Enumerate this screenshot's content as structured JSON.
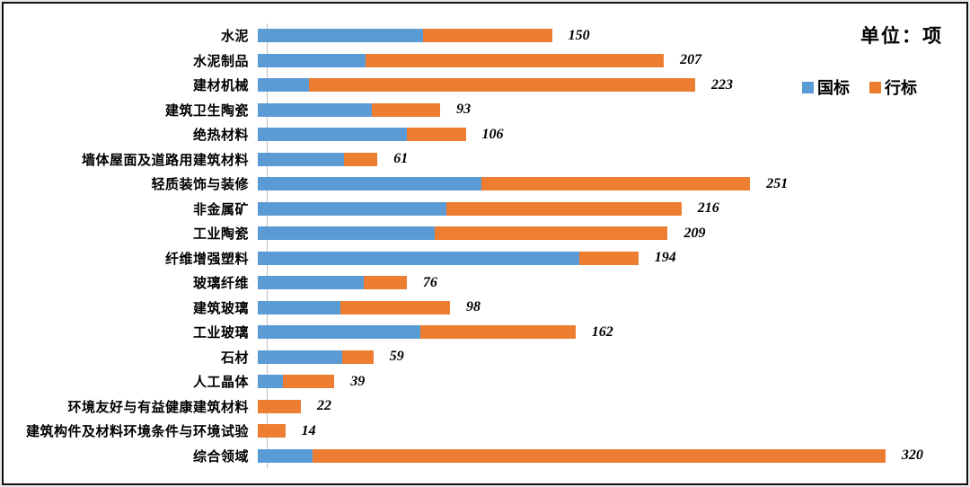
{
  "chart": {
    "unit_label": "单位：项",
    "legend": [
      {
        "label": "国标",
        "color": "#5B9BD5"
      },
      {
        "label": "行标",
        "color": "#ED7D31"
      }
    ]
  },
  "chart_data": {
    "type": "bar",
    "orientation": "horizontal",
    "stacked": true,
    "title": "",
    "xlabel": "",
    "ylabel": "",
    "unit": "项",
    "xlim": [
      0,
      330
    ],
    "grid": false,
    "legend_position": "top-right",
    "value_label_style": "total shown bold-italic at bar end",
    "categories": [
      "水泥",
      "水泥制品",
      "建材机械",
      "建筑卫生陶瓷",
      "绝热材料",
      "墙体屋面及道路用建筑材料",
      "轻质装饰与装修",
      "非金属矿",
      "工业陶瓷",
      "纤维增强塑料",
      "玻璃纤维",
      "建筑玻璃",
      "工业玻璃",
      "石材",
      "人工晶体",
      "环境友好与有益健康建筑材料",
      "建筑构件及材料环境条件与环境试验",
      "综合领域"
    ],
    "series": [
      {
        "name": "国标",
        "color": "#5B9BD5",
        "values": [
          84,
          55,
          26,
          58,
          76,
          44,
          114,
          96,
          90,
          164,
          54,
          42,
          83,
          43,
          13,
          0,
          0,
          28
        ]
      },
      {
        "name": "行标",
        "color": "#ED7D31",
        "values": [
          66,
          152,
          197,
          35,
          30,
          17,
          137,
          120,
          119,
          30,
          22,
          56,
          79,
          16,
          26,
          22,
          14,
          292
        ]
      }
    ],
    "totals": [
      150,
      207,
      223,
      93,
      106,
      61,
      251,
      216,
      209,
      194,
      76,
      98,
      162,
      59,
      39,
      22,
      14,
      320
    ]
  }
}
